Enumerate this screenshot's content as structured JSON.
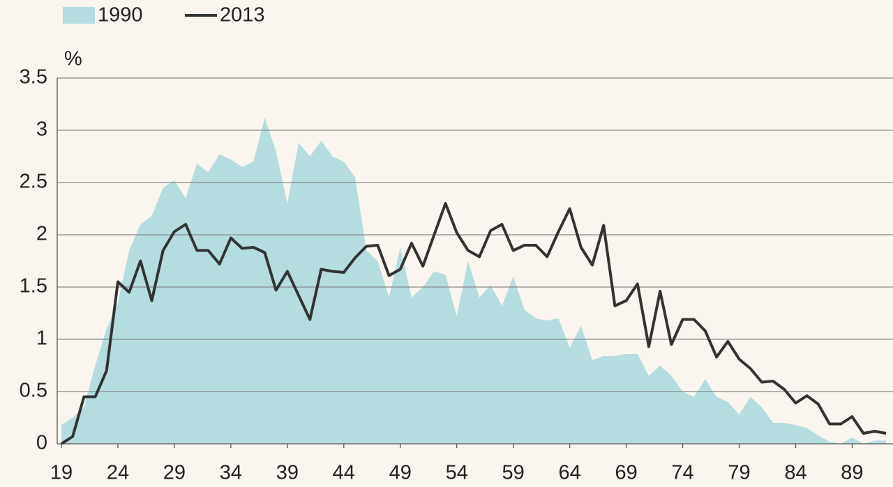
{
  "chart_data": {
    "type": "area_line",
    "y_label": "%",
    "x": [
      19,
      20,
      21,
      22,
      23,
      24,
      25,
      26,
      27,
      28,
      29,
      30,
      31,
      32,
      33,
      34,
      35,
      36,
      37,
      38,
      39,
      40,
      41,
      42,
      43,
      44,
      45,
      46,
      47,
      48,
      49,
      50,
      51,
      52,
      53,
      54,
      55,
      56,
      57,
      58,
      59,
      60,
      61,
      62,
      63,
      64,
      65,
      66,
      67,
      68,
      69,
      70,
      71,
      72,
      73,
      74,
      75,
      76,
      77,
      78,
      79,
      80,
      81,
      82,
      83,
      84,
      85,
      86,
      87,
      88,
      89,
      90,
      91,
      92
    ],
    "series": [
      {
        "name": "1990",
        "kind": "area",
        "color": "#b5dde0",
        "values": [
          0.18,
          0.25,
          0.35,
          0.75,
          1.1,
          1.35,
          1.85,
          2.1,
          2.18,
          2.45,
          2.52,
          2.35,
          2.68,
          2.6,
          2.77,
          2.72,
          2.65,
          2.7,
          3.12,
          2.8,
          2.3,
          2.88,
          2.75,
          2.9,
          2.75,
          2.7,
          2.55,
          1.85,
          1.75,
          1.4,
          1.88,
          1.4,
          1.5,
          1.65,
          1.62,
          1.22,
          1.75,
          1.4,
          1.52,
          1.32,
          1.6,
          1.28,
          1.2,
          1.18,
          1.2,
          0.92,
          1.13,
          0.8,
          0.84,
          0.84,
          0.86,
          0.86,
          0.65,
          0.75,
          0.65,
          0.5,
          0.45,
          0.62,
          0.45,
          0.4,
          0.28,
          0.45,
          0.35,
          0.2,
          0.2,
          0.18,
          0.15,
          0.08,
          0.02,
          0,
          0.06,
          0,
          0.03,
          0.03
        ]
      },
      {
        "name": "2013",
        "kind": "line",
        "color": "#333333",
        "values": [
          0,
          0.07,
          0.45,
          0.45,
          0.7,
          1.55,
          1.45,
          1.75,
          1.37,
          1.85,
          2.03,
          2.1,
          1.85,
          1.85,
          1.72,
          1.97,
          1.87,
          1.88,
          1.83,
          1.47,
          1.65,
          1.42,
          1.19,
          1.67,
          1.65,
          1.64,
          1.78,
          1.89,
          1.9,
          1.61,
          1.67,
          1.92,
          1.7,
          2.0,
          2.3,
          2.02,
          1.85,
          1.79,
          2.04,
          2.1,
          1.85,
          1.9,
          1.9,
          1.79,
          2.03,
          2.25,
          1.88,
          1.71,
          2.09,
          1.32,
          1.37,
          1.53,
          0.93,
          1.46,
          0.95,
          1.19,
          1.19,
          1.08,
          0.83,
          0.98,
          0.81,
          0.72,
          0.59,
          0.6,
          0.52,
          0.39,
          0.46,
          0.38,
          0.19,
          0.19,
          0.26,
          0.1,
          0.12,
          0.1
        ]
      }
    ],
    "xlim": [
      19,
      92
    ],
    "xticks": [
      19,
      24,
      29,
      34,
      39,
      44,
      49,
      54,
      59,
      64,
      69,
      74,
      79,
      84,
      89
    ],
    "ylim": [
      0,
      3.5
    ],
    "yticks": [
      0,
      0.5,
      1,
      1.5,
      2,
      2.5,
      3,
      3.5
    ],
    "grid": true,
    "legend": "top-left"
  }
}
